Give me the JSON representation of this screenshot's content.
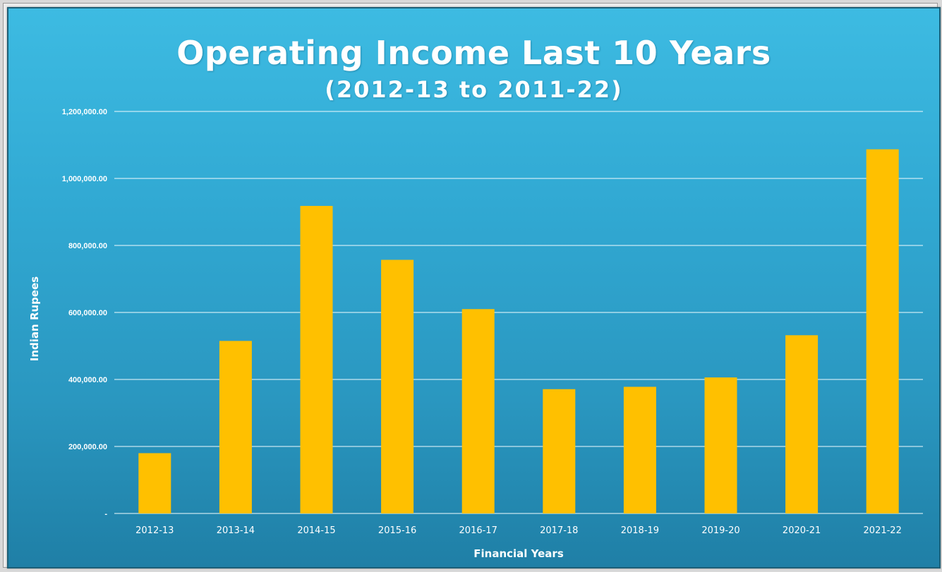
{
  "chart_data": {
    "type": "bar",
    "title": "Operating Income Last 10 Years",
    "subtitle": "(2012-13 to 2011-22)",
    "xlabel": "Financial Years",
    "ylabel": "Indian Rupees",
    "categories": [
      "2012-13",
      "2013-14",
      "2014-15",
      "2015-16",
      "2016-17",
      "2017-18",
      "2018-19",
      "2019-20",
      "2020-21",
      "2021-22"
    ],
    "values": [
      180000,
      515000,
      918000,
      757000,
      610000,
      371000,
      378000,
      406000,
      532000,
      1087000
    ],
    "ylim": [
      0,
      1200000
    ],
    "yticks": [
      0,
      200000,
      400000,
      600000,
      800000,
      1000000,
      1200000
    ],
    "ytick_labels": [
      "-",
      "200,000.00",
      "400,000.00",
      "600,000.00",
      "800,000.00",
      "1,000,000.00",
      "1,200,000.00"
    ],
    "grid": true,
    "legend": "none",
    "colors": {
      "bar": "#ffc000",
      "gridline": "#e6f6fb",
      "background": "#31a9d3"
    }
  }
}
